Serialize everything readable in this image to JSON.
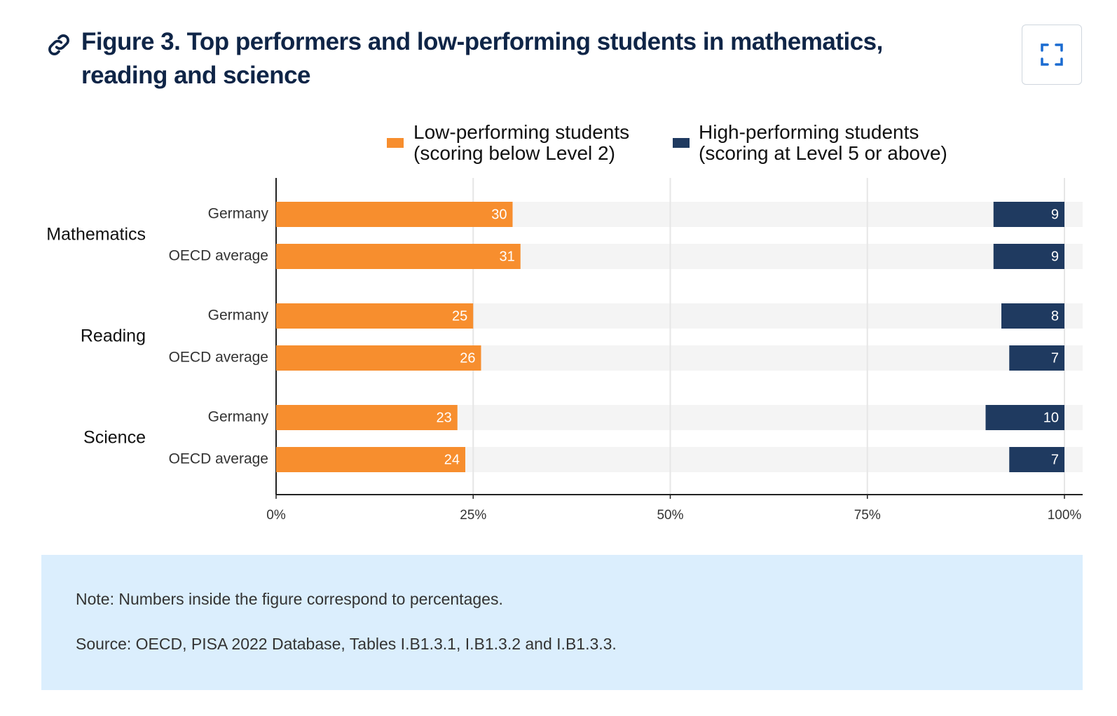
{
  "title": "Figure 3. Top performers and low-performing students in mathematics, reading and science",
  "chart_data": {
    "type": "bar",
    "orientation": "horizontal",
    "groups": [
      "Mathematics",
      "Reading",
      "Science"
    ],
    "categories": [
      "Germany",
      "OECD average",
      "Germany",
      "OECD average",
      "Germany",
      "OECD average"
    ],
    "series": [
      {
        "name": "Low-performing students\n(scoring below Level 2)",
        "color": "#f78e2e",
        "anchor": "start",
        "values": [
          30,
          31,
          25,
          26,
          23,
          24
        ]
      },
      {
        "name": "High-performing students\n(scoring at Level 5 or above)",
        "color": "#1f3a60",
        "anchor": "end",
        "values": [
          9,
          9,
          8,
          7,
          10,
          7
        ]
      }
    ],
    "xlim": [
      0,
      100
    ],
    "xticks": [
      {
        "value": 0,
        "label": "0%"
      },
      {
        "value": 25,
        "label": "25%"
      },
      {
        "value": 50,
        "label": "50%"
      },
      {
        "value": 75,
        "label": "75%"
      },
      {
        "value": 100,
        "label": "100%"
      }
    ],
    "grid": true,
    "legend": "top"
  },
  "note": "Note: Numbers inside the figure correspond to percentages.",
  "source": "Source: OECD, PISA 2022 Database, Tables I.B1.3.1, I.B1.3.2 and I.B1.3.3."
}
